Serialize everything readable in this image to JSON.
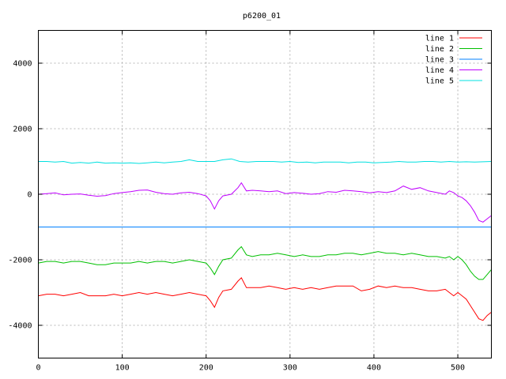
{
  "chart_data": {
    "type": "line",
    "title": "p6200_01",
    "xlabel": "",
    "ylabel": "",
    "xlim": [
      0,
      540
    ],
    "ylim": [
      -5000,
      5000
    ],
    "xticks": [
      0,
      100,
      200,
      300,
      400,
      500
    ],
    "yticks": [
      -4000,
      -2000,
      0,
      2000,
      4000
    ],
    "grid": true,
    "legend_position": "top-right",
    "series": [
      {
        "name": "line 1",
        "color": "#ff0000",
        "x": [
          0,
          10,
          20,
          30,
          40,
          50,
          60,
          70,
          80,
          90,
          100,
          110,
          120,
          130,
          140,
          150,
          160,
          170,
          180,
          190,
          200,
          205,
          210,
          215,
          220,
          230,
          238,
          242,
          248,
          255,
          265,
          275,
          285,
          295,
          305,
          315,
          325,
          335,
          345,
          355,
          365,
          375,
          385,
          395,
          405,
          415,
          425,
          435,
          445,
          455,
          465,
          475,
          485,
          490,
          495,
          500,
          505,
          510,
          515,
          520,
          525,
          530,
          535,
          540
        ],
        "values": [
          -3100,
          -3050,
          -3050,
          -3100,
          -3050,
          -3000,
          -3100,
          -3100,
          -3100,
          -3050,
          -3100,
          -3050,
          -3000,
          -3050,
          -3000,
          -3050,
          -3100,
          -3050,
          -3000,
          -3050,
          -3100,
          -3250,
          -3450,
          -3150,
          -2950,
          -2900,
          -2650,
          -2550,
          -2850,
          -2850,
          -2850,
          -2800,
          -2850,
          -2900,
          -2850,
          -2900,
          -2850,
          -2900,
          -2850,
          -2800,
          -2800,
          -2800,
          -2950,
          -2900,
          -2800,
          -2850,
          -2800,
          -2850,
          -2850,
          -2900,
          -2950,
          -2950,
          -2900,
          -3000,
          -3100,
          -3000,
          -3100,
          -3200,
          -3400,
          -3600,
          -3800,
          -3850,
          -3700,
          -3600
        ]
      },
      {
        "name": "line 2",
        "color": "#00c000",
        "x": [
          0,
          10,
          20,
          30,
          40,
          50,
          60,
          70,
          80,
          90,
          100,
          110,
          120,
          130,
          140,
          150,
          160,
          170,
          180,
          190,
          200,
          205,
          210,
          215,
          220,
          230,
          238,
          242,
          248,
          255,
          265,
          275,
          285,
          295,
          305,
          315,
          325,
          335,
          345,
          355,
          365,
          375,
          385,
          395,
          405,
          415,
          425,
          435,
          445,
          455,
          465,
          475,
          485,
          490,
          495,
          500,
          505,
          510,
          515,
          520,
          525,
          530,
          535,
          540
        ],
        "values": [
          -2100,
          -2050,
          -2050,
          -2100,
          -2050,
          -2050,
          -2100,
          -2150,
          -2150,
          -2100,
          -2100,
          -2100,
          -2050,
          -2100,
          -2050,
          -2050,
          -2100,
          -2050,
          -2000,
          -2050,
          -2100,
          -2250,
          -2450,
          -2200,
          -2000,
          -1950,
          -1700,
          -1600,
          -1850,
          -1900,
          -1850,
          -1850,
          -1800,
          -1850,
          -1900,
          -1850,
          -1900,
          -1900,
          -1850,
          -1850,
          -1800,
          -1800,
          -1850,
          -1800,
          -1750,
          -1800,
          -1800,
          -1850,
          -1800,
          -1850,
          -1900,
          -1900,
          -1950,
          -1900,
          -2000,
          -1900,
          -2000,
          -2150,
          -2350,
          -2500,
          -2600,
          -2600,
          -2450,
          -2300
        ]
      },
      {
        "name": "line 3",
        "color": "#0080ff",
        "x": [
          0,
          540
        ],
        "values": [
          -1000,
          -1000
        ]
      },
      {
        "name": "line 4",
        "color": "#c000ff",
        "x": [
          0,
          10,
          20,
          30,
          40,
          50,
          60,
          70,
          80,
          90,
          100,
          110,
          120,
          130,
          140,
          150,
          160,
          170,
          180,
          190,
          200,
          205,
          210,
          215,
          220,
          230,
          238,
          242,
          248,
          255,
          265,
          275,
          285,
          295,
          305,
          315,
          325,
          335,
          345,
          355,
          365,
          375,
          385,
          395,
          405,
          415,
          425,
          435,
          445,
          455,
          465,
          475,
          485,
          490,
          495,
          500,
          505,
          510,
          515,
          520,
          525,
          530,
          535,
          540
        ],
        "values": [
          0,
          20,
          40,
          -20,
          0,
          10,
          -30,
          -60,
          -40,
          20,
          50,
          80,
          120,
          130,
          60,
          20,
          0,
          40,
          60,
          20,
          -50,
          -200,
          -450,
          -200,
          -50,
          0,
          200,
          350,
          100,
          120,
          100,
          80,
          100,
          20,
          50,
          30,
          0,
          20,
          80,
          60,
          120,
          100,
          80,
          40,
          80,
          50,
          100,
          250,
          150,
          200,
          100,
          50,
          0,
          100,
          50,
          -50,
          -100,
          -200,
          -350,
          -550,
          -800,
          -850,
          -750,
          -650
        ]
      },
      {
        "name": "line 5",
        "color": "#00e0e0",
        "x": [
          0,
          10,
          20,
          30,
          40,
          50,
          60,
          70,
          80,
          90,
          100,
          110,
          120,
          130,
          140,
          150,
          160,
          170,
          180,
          190,
          200,
          210,
          220,
          230,
          240,
          250,
          260,
          270,
          280,
          290,
          300,
          310,
          320,
          330,
          340,
          350,
          360,
          370,
          380,
          390,
          400,
          410,
          420,
          430,
          440,
          450,
          460,
          470,
          480,
          490,
          500,
          510,
          520,
          530,
          540
        ],
        "values": [
          1000,
          1000,
          980,
          1000,
          950,
          970,
          950,
          980,
          950,
          960,
          950,
          960,
          940,
          960,
          980,
          960,
          980,
          1000,
          1050,
          1000,
          1000,
          1000,
          1050,
          1080,
          1000,
          980,
          1000,
          1000,
          1000,
          980,
          1000,
          970,
          980,
          960,
          980,
          980,
          980,
          960,
          980,
          980,
          960,
          970,
          980,
          1000,
          980,
          980,
          1000,
          1000,
          980,
          1000,
          980,
          990,
          980,
          990,
          1000
        ]
      }
    ]
  }
}
